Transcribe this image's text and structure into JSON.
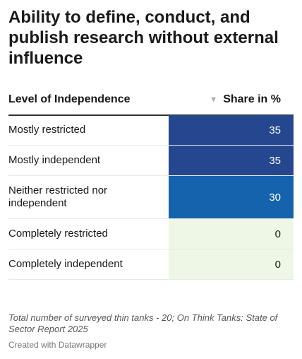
{
  "title": "Ability to define, conduct, and publish research without external influence",
  "table": {
    "col_label": "Level of Independence",
    "col_value": "Share in %",
    "sort_icon": "triangle-down"
  },
  "chart_data": {
    "type": "table",
    "title": "Ability to define, conduct, and publish research without external influence",
    "columns": [
      "Level of Independence",
      "Share in %"
    ],
    "rows": [
      {
        "label": "Mostly restricted",
        "value": 35,
        "bg": "#24478f",
        "fg": "#ffffff"
      },
      {
        "label": "Mostly independent",
        "value": 35,
        "bg": "#24478f",
        "fg": "#ffffff"
      },
      {
        "label": "Neither restricted nor independent",
        "value": 30,
        "bg": "#1563ac",
        "fg": "#ffffff"
      },
      {
        "label": "Completely restricted",
        "value": 0,
        "bg": "#eef7e6",
        "fg": "#181818"
      },
      {
        "label": "Completely independent",
        "value": 0,
        "bg": "#eef7e6",
        "fg": "#181818"
      }
    ]
  },
  "footnote": "Total number of surveyed thin tanks - 20; On Think Tanks: State of Sector Report 2025",
  "credit": "Created with Datawrapper"
}
